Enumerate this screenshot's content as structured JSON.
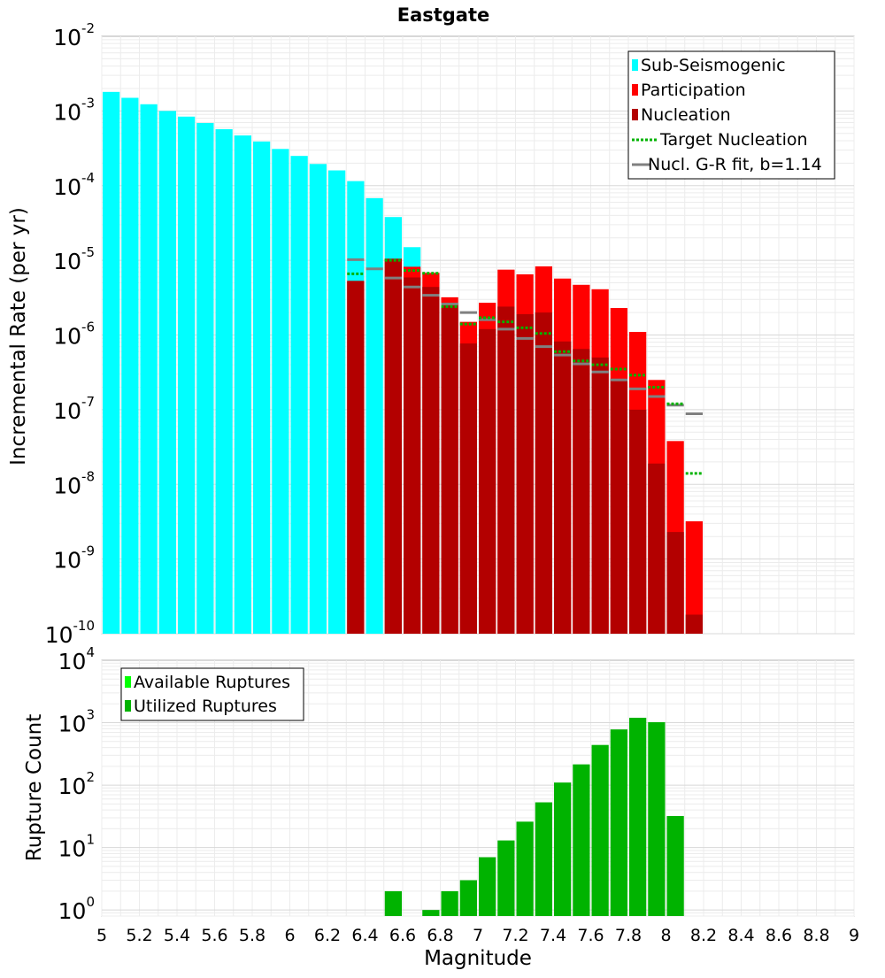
{
  "colors": {
    "sub_seismogenic": "#00ffff",
    "participation": "#ff0000",
    "nucleation": "#b30000",
    "target_nucleation": "#00b300",
    "gr_fit": "#808080",
    "available": "#00ff00",
    "utilized": "#00b300"
  },
  "chart_data": [
    {
      "type": "bar",
      "title": "Eastgate",
      "ylabel": "Incremental Rate (per yr)",
      "xlabel": "",
      "xlim": [
        5,
        9
      ],
      "ylim": [
        1e-10,
        0.01
      ],
      "y_scale": "log",
      "y_ticks": [
        {
          "base": "10",
          "exp": "-2",
          "value": 0.01
        },
        {
          "base": "10",
          "exp": "-3",
          "value": 0.001
        },
        {
          "base": "10",
          "exp": "-4",
          "value": 0.0001
        },
        {
          "base": "10",
          "exp": "-5",
          "value": 1e-05
        },
        {
          "base": "10",
          "exp": "-6",
          "value": 1e-06
        },
        {
          "base": "10",
          "exp": "-7",
          "value": 1e-07
        },
        {
          "base": "10",
          "exp": "-8",
          "value": 1e-08
        },
        {
          "base": "10",
          "exp": "-9",
          "value": 1e-09
        },
        {
          "base": "10",
          "exp": "-10",
          "value": 1e-10
        }
      ],
      "grid": true,
      "legend_position": "top-right",
      "legend": [
        {
          "label": "Sub-Seismogenic",
          "kind": "bar",
          "color_key": "sub_seismogenic"
        },
        {
          "label": "Participation",
          "kind": "bar",
          "color_key": "participation"
        },
        {
          "label": "Nucleation",
          "kind": "bar",
          "color_key": "nucleation"
        },
        {
          "label": "Target Nucleation",
          "kind": "dotted",
          "color_key": "target_nucleation"
        },
        {
          "label": "Nucl. G-R fit, b=1.14",
          "kind": "solid",
          "color_key": "gr_fit"
        }
      ],
      "bin_width": 0.1,
      "series": [
        {
          "name": "Sub-Seismogenic",
          "kind": "bar",
          "x": [
            5.05,
            5.15,
            5.25,
            5.35,
            5.45,
            5.55,
            5.65,
            5.75,
            5.85,
            5.95,
            6.05,
            6.15,
            6.25,
            6.35,
            6.45,
            6.55,
            6.65
          ],
          "values": [
            0.0018,
            0.0015,
            0.00123,
            0.001,
            0.00084,
            0.00069,
            0.00057,
            0.00047,
            0.00039,
            0.00031,
            0.00025,
            0.000195,
            0.00016,
            0.000115,
            6.8e-05,
            3.8e-05,
            1.5e-05
          ]
        },
        {
          "name": "Participation",
          "kind": "bar",
          "x": [
            6.35,
            6.55,
            6.65,
            6.75,
            6.85,
            6.95,
            7.05,
            7.15,
            7.25,
            7.35,
            7.45,
            7.55,
            7.65,
            7.75,
            7.85,
            7.95,
            8.05,
            8.15
          ],
          "values": [
            5.3e-06,
            1.05e-05,
            8.2e-06,
            6.8e-06,
            3.2e-06,
            1.5e-06,
            2.7e-06,
            7.5e-06,
            6.5e-06,
            8.3e-06,
            5.7e-06,
            4.7e-06,
            4.1e-06,
            2.3e-06,
            1.1e-06,
            2.5e-07,
            3.8e-08,
            3.2e-09
          ]
        },
        {
          "name": "Nucleation",
          "kind": "bar",
          "x": [
            6.35,
            6.55,
            6.65,
            6.75,
            6.85,
            6.95,
            7.05,
            7.15,
            7.25,
            7.35,
            7.45,
            7.55,
            7.65,
            7.75,
            7.85,
            7.95,
            8.05,
            8.15
          ],
          "values": [
            5.3e-06,
            1.05e-05,
            5.9e-06,
            4.4e-06,
            2.6e-06,
            7.7e-07,
            1.2e-06,
            2.4e-06,
            1.9e-06,
            2e-06,
            8.2e-07,
            6.5e-07,
            5e-07,
            2.6e-07,
            1e-07,
            1.9e-08,
            2.3e-09,
            1.8e-10
          ]
        },
        {
          "name": "Target Nucleation",
          "kind": "dotted",
          "x": [
            6.35,
            6.55,
            6.65,
            6.75,
            6.85,
            6.95,
            7.05,
            7.15,
            7.25,
            7.35,
            7.45,
            7.55,
            7.65,
            7.75,
            7.85,
            7.95,
            8.05,
            8.15
          ],
          "values": [
            6.6e-06,
            1e-05,
            7.3e-06,
            6.7e-06,
            2.4e-06,
            1.4e-06,
            1.7e-06,
            1.5e-06,
            1.25e-06,
            1.05e-06,
            6e-07,
            4.5e-07,
            4e-07,
            3.5e-07,
            2.9e-07,
            2e-07,
            1.2e-07,
            1.4e-08
          ]
        },
        {
          "name": "Nucl. G-R fit, b=1.14",
          "kind": "solid",
          "x": [
            6.35,
            6.45,
            6.55,
            6.65,
            6.75,
            6.85,
            6.95,
            7.05,
            7.15,
            7.25,
            7.35,
            7.45,
            7.55,
            7.65,
            7.75,
            7.85,
            7.95,
            8.05,
            8.15
          ],
          "values": [
            1.02e-05,
            7.7e-06,
            5.8e-06,
            4.4e-06,
            3.4e-06,
            2.6e-06,
            2e-06,
            1.6e-06,
            1.2e-06,
            9e-07,
            7e-07,
            5.4e-07,
            4.1e-07,
            3.2e-07,
            2.5e-07,
            1.9e-07,
            1.5e-07,
            1.15e-07,
            8.8e-08
          ]
        }
      ]
    },
    {
      "type": "bar",
      "title": "",
      "ylabel": "Rupture Count",
      "xlabel": "Magnitude",
      "xlim": [
        5,
        9
      ],
      "ylim": [
        0.8,
        10000
      ],
      "y_scale": "log",
      "y_ticks": [
        {
          "base": "10",
          "exp": "4",
          "value": 10000
        },
        {
          "base": "10",
          "exp": "3",
          "value": 1000
        },
        {
          "base": "10",
          "exp": "2",
          "value": 100
        },
        {
          "base": "10",
          "exp": "1",
          "value": 10
        },
        {
          "base": "10",
          "exp": "0",
          "value": 1
        }
      ],
      "x_ticks": [
        "5",
        "5.2",
        "5.4",
        "5.6",
        "5.8",
        "6",
        "6.2",
        "6.4",
        "6.6",
        "6.8",
        "7",
        "7.2",
        "7.4",
        "7.6",
        "7.8",
        "8",
        "8.2",
        "8.4",
        "8.6",
        "8.8",
        "9"
      ],
      "grid": true,
      "legend_position": "top-left",
      "legend": [
        {
          "label": "Available Ruptures",
          "kind": "bar",
          "color_key": "available"
        },
        {
          "label": "Utilized Ruptures",
          "kind": "bar",
          "color_key": "utilized"
        }
      ],
      "bin_width": 0.1,
      "series": [
        {
          "name": "Utilized Ruptures",
          "kind": "bar",
          "x": [
            6.55,
            6.75,
            6.85,
            6.95,
            7.05,
            7.15,
            7.25,
            7.35,
            7.45,
            7.55,
            7.65,
            7.75,
            7.85,
            7.95,
            8.05
          ],
          "values": [
            2,
            1,
            2,
            3,
            7,
            13,
            26,
            53,
            110,
            215,
            440,
            780,
            1200,
            1020,
            32
          ]
        }
      ]
    }
  ]
}
